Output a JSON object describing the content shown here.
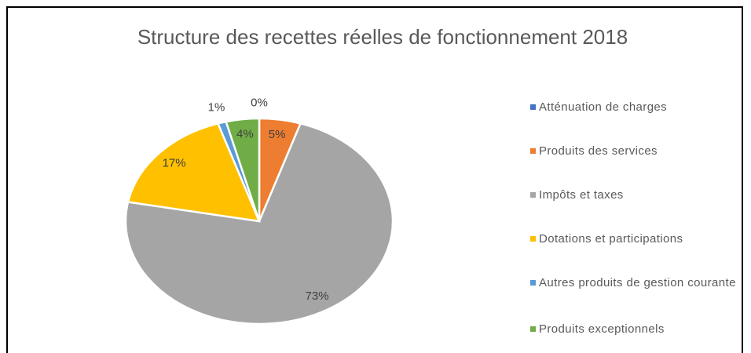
{
  "chart_data": {
    "type": "pie",
    "title": "Structure des recettes réelles de fonctionnement 2018",
    "categories": [
      "Atténuation de charges",
      "Produits des services",
      "Impôts et taxes",
      "Dotations et participations",
      "Autres produits de gestion courante",
      "Produits exceptionnels"
    ],
    "values": [
      0,
      5,
      73,
      17,
      1,
      4
    ],
    "value_labels": [
      "0%",
      "5%",
      "73%",
      "17%",
      "1%",
      "4%"
    ],
    "colors": [
      "#4472c4",
      "#ed7d31",
      "#a5a5a5",
      "#ffc000",
      "#5b9bd5",
      "#70ad47"
    ],
    "legend": "right"
  }
}
